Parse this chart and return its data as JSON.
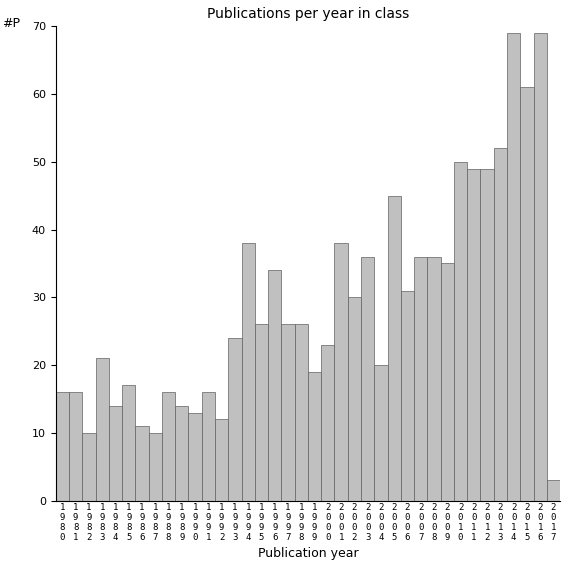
{
  "years": [
    1980,
    1981,
    1982,
    1983,
    1984,
    1985,
    1986,
    1987,
    1988,
    1989,
    1990,
    1991,
    1992,
    1993,
    1994,
    1995,
    1996,
    1997,
    1998,
    1999,
    2000,
    2001,
    2002,
    2003,
    2004,
    2005,
    2006,
    2007,
    2008,
    2009,
    2010,
    2011,
    2012,
    2013,
    2014,
    2015,
    2016,
    2017
  ],
  "values": [
    16,
    16,
    10,
    21,
    14,
    17,
    11,
    10,
    16,
    14,
    13,
    16,
    12,
    24,
    38,
    26,
    34,
    26,
    26,
    19,
    23,
    38,
    30,
    36,
    20,
    45,
    31,
    36,
    36,
    35,
    50,
    49,
    49,
    52,
    69,
    61,
    69,
    3
  ],
  "title": "Publications per year in class",
  "xlabel": "Publication year",
  "ylabel": "#P",
  "ylim": [
    0,
    70
  ],
  "yticks": [
    0,
    10,
    20,
    30,
    40,
    50,
    60,
    70
  ],
  "bar_color": "#c0c0c0",
  "bar_edgecolor": "#606060",
  "bg_color": "#ffffff",
  "title_fontsize": 10,
  "label_fontsize": 9,
  "tick_fontsize": 8,
  "xtick_fontsize": 6.5
}
